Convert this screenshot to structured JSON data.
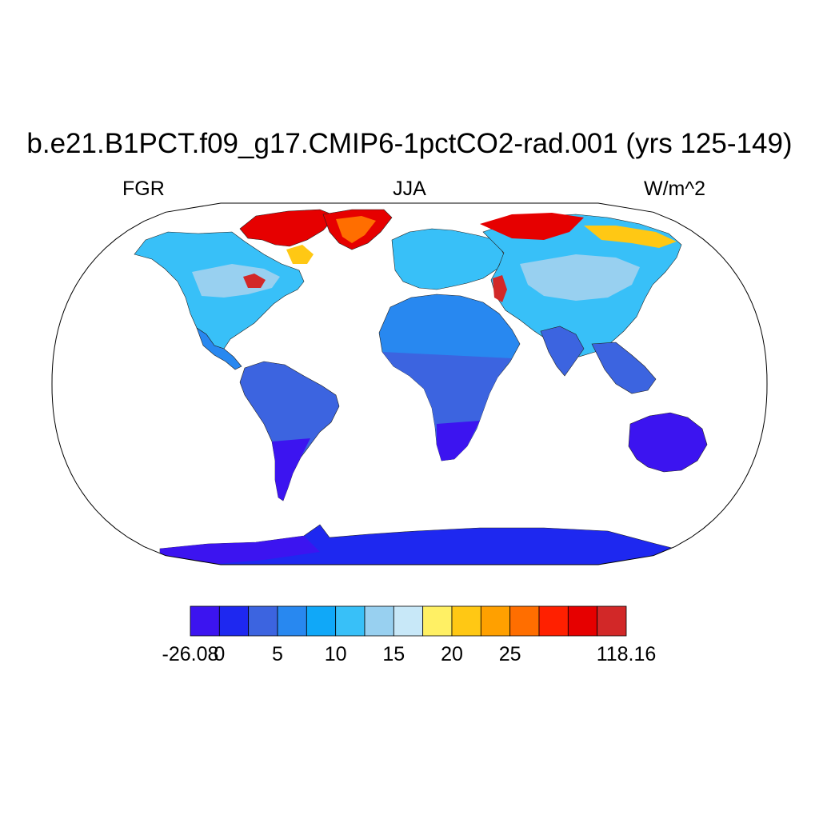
{
  "header": {
    "title": "b.e21.B1PCT.f09_g17.CMIP6-1pctCO2-rad.001 (yrs 125-149)",
    "left_label": "FGR",
    "center_label": "JJA",
    "right_label": "W/m^2"
  },
  "map": {
    "projection": "Robinson",
    "ocean_color": "#ffffff"
  },
  "colorbar": {
    "colors": [
      "#3c14f0",
      "#1e28f0",
      "#3c64e0",
      "#2888f0",
      "#10a8f8",
      "#38c0f8",
      "#98d0f0",
      "#c8e8f8",
      "#fff064",
      "#ffc814",
      "#ffa000",
      "#ff6e00",
      "#ff2000",
      "#e60000",
      "#d22828"
    ],
    "tick_labels": [
      "-26.08",
      "0",
      "5",
      "10",
      "15",
      "20",
      "25",
      "118.16"
    ]
  },
  "legend_colors": {
    "minimum": "#3c14f0",
    "maximum": "#d22828"
  }
}
